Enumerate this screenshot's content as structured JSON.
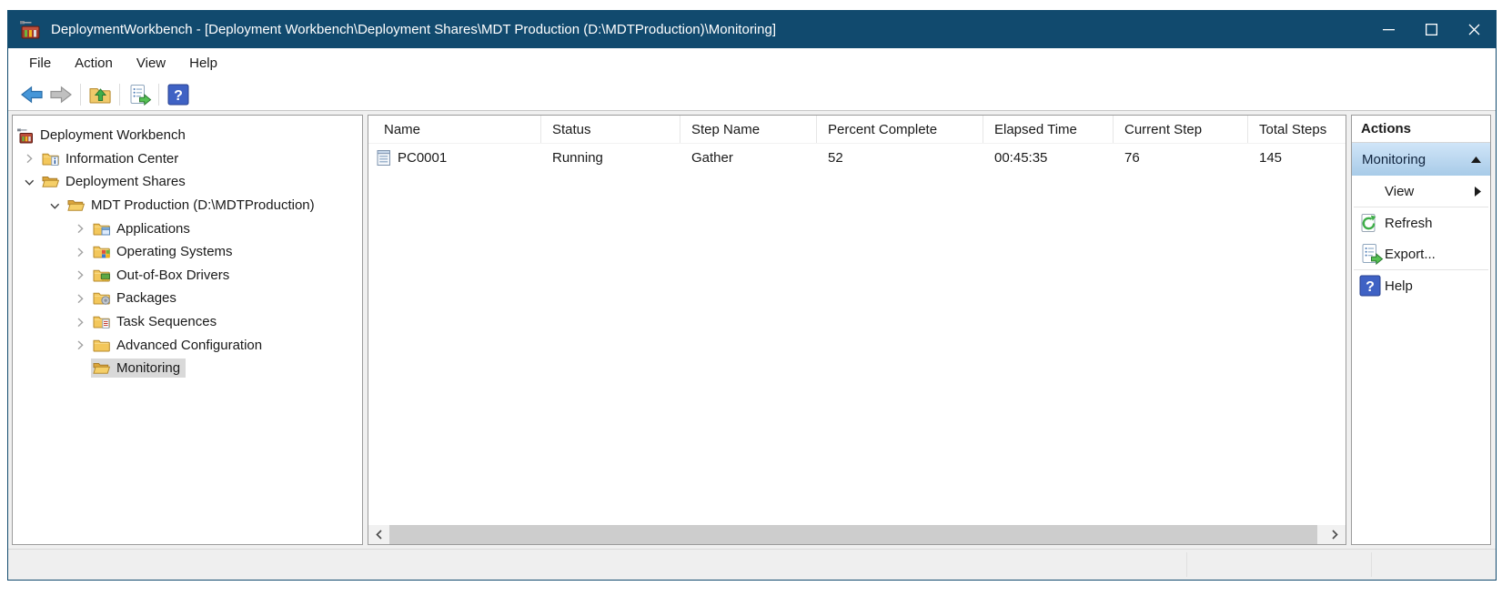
{
  "window": {
    "title": "DeploymentWorkbench - [Deployment Workbench\\Deployment Shares\\MDT Production (D:\\MDTProduction)\\Monitoring]",
    "app_icon": "toolbox-icon",
    "controls": [
      {
        "name": "minimize-button",
        "icon": "minimize-icon"
      },
      {
        "name": "maximize-button",
        "icon": "maximize-icon"
      },
      {
        "name": "close-button",
        "icon": "close-icon"
      }
    ]
  },
  "menubar": {
    "items": [
      "File",
      "Action",
      "View",
      "Help"
    ]
  },
  "toolbar": {
    "items": [
      {
        "icon": "back-icon",
        "enabled": true
      },
      {
        "icon": "forward-icon",
        "enabled": false
      },
      "separator",
      {
        "icon": "up-one-level-icon",
        "enabled": true
      },
      "separator",
      {
        "icon": "export-list-icon",
        "enabled": true
      },
      "separator",
      {
        "icon": "help-icon",
        "enabled": true
      }
    ]
  },
  "tree": {
    "items": [
      {
        "label": "Deployment Workbench",
        "level": 0,
        "chevron": "none",
        "icon": "workbench-icon",
        "selected": false
      },
      {
        "label": "Information Center",
        "level": 1,
        "chevron": "collapsed",
        "icon": "folder-info-icon",
        "selected": false
      },
      {
        "label": "Deployment Shares",
        "level": 1,
        "chevron": "expanded",
        "icon": "folder-open-icon",
        "selected": false
      },
      {
        "label": "MDT Production (D:\\MDTProduction)",
        "level": 2,
        "chevron": "expanded",
        "icon": "folder-open-icon",
        "selected": false
      },
      {
        "label": "Applications",
        "level": 3,
        "chevron": "collapsed",
        "icon": "folder-applications-icon",
        "selected": false
      },
      {
        "label": "Operating Systems",
        "level": 3,
        "chevron": "collapsed",
        "icon": "folder-os-icon",
        "selected": false
      },
      {
        "label": "Out-of-Box Drivers",
        "level": 3,
        "chevron": "collapsed",
        "icon": "folder-drivers-icon",
        "selected": false
      },
      {
        "label": "Packages",
        "level": 3,
        "chevron": "collapsed",
        "icon": "folder-packages-icon",
        "selected": false
      },
      {
        "label": "Task Sequences",
        "level": 3,
        "chevron": "collapsed",
        "icon": "folder-tasks-icon",
        "selected": false
      },
      {
        "label": "Advanced Configuration",
        "level": 3,
        "chevron": "collapsed",
        "icon": "folder-plain-icon",
        "selected": false
      },
      {
        "label": "Monitoring",
        "level": 3,
        "chevron": "none",
        "icon": "folder-open-icon",
        "selected": true
      }
    ]
  },
  "list": {
    "columns": [
      "Name",
      "Status",
      "Step Name",
      "Percent Complete",
      "Elapsed Time",
      "Current Step",
      "Total Steps"
    ],
    "rows": [
      {
        "icon": "computer-icon",
        "cells": [
          "PC0001",
          "Running",
          "Gather",
          "52",
          "00:45:35",
          "76",
          "145"
        ]
      }
    ],
    "scrollbar": {
      "left_icon": "scroll-left-icon",
      "right_icon": "scroll-right-icon"
    }
  },
  "actions": {
    "title": "Actions",
    "group": {
      "label": "Monitoring",
      "collapse_icon": "chevron-up-icon"
    },
    "items": [
      {
        "label": "View",
        "icon": null,
        "submenu": true,
        "submenu_icon": "chevron-right-icon"
      },
      "separator",
      {
        "label": "Refresh",
        "icon": "refresh-icon",
        "submenu": false
      },
      {
        "label": "Export...",
        "icon": "export-list-icon",
        "submenu": false
      },
      "separator",
      {
        "label": "Help",
        "icon": "help-icon",
        "submenu": false
      }
    ]
  },
  "colors": {
    "titlebar_bg": "#114a6e",
    "group_header_top": "#d0e5f8",
    "group_header_bottom": "#a8cbe8",
    "tree_selection_bg": "#d9d9d9",
    "folder_yellow": "#f3c75b",
    "accent_green": "#3fae49",
    "help_blue": "#3f62c4",
    "back_arrow_blue": "#4596d8"
  }
}
